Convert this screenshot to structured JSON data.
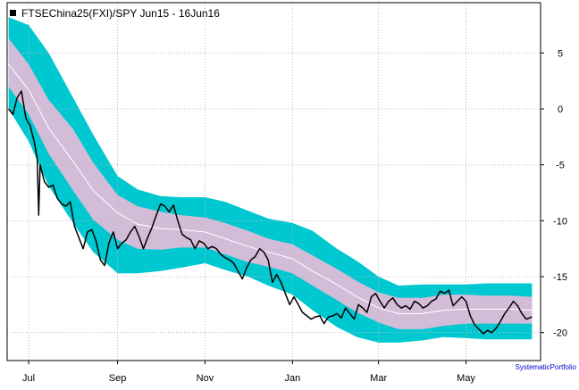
{
  "chart_data": {
    "type": "line",
    "title": "FTSEChina25(FXI)/SPY Jun15 - 16Jun16",
    "credit": "SystematicPortfolio",
    "x_tick_labels": [
      "Jul",
      "Sep",
      "Nov",
      "Jan",
      "Mar",
      "May"
    ],
    "x_tick_dates": [
      "2015-07-01",
      "2015-09-01",
      "2015-11-01",
      "2016-01-01",
      "2016-03-01",
      "2016-05-01"
    ],
    "x_range": [
      "2015-06-16",
      "2016-06-22"
    ],
    "y_tick_labels": [
      "5",
      "0",
      "-5",
      "-10",
      "-15",
      "-20"
    ],
    "y_ticks": [
      5,
      0,
      -5,
      -10,
      -15,
      -20
    ],
    "ylim": [
      -22.5,
      9.5
    ],
    "grid": true,
    "y_axis_side": "right",
    "colors": {
      "series": "#000000",
      "inner_band": "#d3bcd8",
      "outer_band": "#00c8d0",
      "mid_line": "#ffffff",
      "grid": "#bbbbbb",
      "legend_marker": "#000000",
      "credit": "#0000cc"
    },
    "bands": {
      "dates": [
        "2015-06-17",
        "2015-07-01",
        "2015-07-15",
        "2015-08-01",
        "2015-08-15",
        "2015-09-01",
        "2015-09-15",
        "2015-10-01",
        "2015-10-15",
        "2015-11-01",
        "2015-11-15",
        "2015-12-01",
        "2015-12-15",
        "2016-01-01",
        "2016-01-15",
        "2016-02-01",
        "2016-02-15",
        "2016-03-01",
        "2016-03-15",
        "2016-04-01",
        "2016-04-15",
        "2016-05-01",
        "2016-05-15",
        "2016-06-01",
        "2016-06-16"
      ],
      "mid": [
        4.0,
        1.7,
        -1.7,
        -4.7,
        -7.3,
        -9.3,
        -10.3,
        -10.7,
        -10.8,
        -11.0,
        -11.6,
        -12.3,
        -12.8,
        -13.4,
        -14.5,
        -15.7,
        -16.8,
        -17.8,
        -18.3,
        -18.3,
        -18.0,
        -17.9,
        -17.9,
        -17.9,
        -18.0
      ],
      "inner_upper": [
        6.3,
        4.0,
        0.8,
        -1.8,
        -4.8,
        -7.7,
        -8.7,
        -9.2,
        -9.5,
        -9.7,
        -10.2,
        -10.9,
        -11.6,
        -12.1,
        -13.1,
        -14.3,
        -15.4,
        -16.4,
        -16.9,
        -16.9,
        -16.6,
        -16.6,
        -16.7,
        -16.7,
        -16.8
      ],
      "inner_lower": [
        2.0,
        -0.5,
        -4.0,
        -7.3,
        -9.9,
        -11.7,
        -12.5,
        -12.6,
        -12.4,
        -12.4,
        -13.0,
        -13.7,
        -14.1,
        -14.7,
        -15.8,
        -17.1,
        -18.2,
        -19.1,
        -19.7,
        -19.7,
        -19.4,
        -19.2,
        -19.2,
        -19.2,
        -19.2
      ],
      "outer_upper": [
        8.2,
        7.5,
        5.0,
        1.0,
        -2.3,
        -6.0,
        -7.2,
        -7.8,
        -7.9,
        -7.9,
        -8.3,
        -9.1,
        -9.8,
        -10.2,
        -10.9,
        -12.5,
        -13.6,
        -15.0,
        -15.8,
        -15.7,
        -15.7,
        -15.7,
        -15.6,
        -15.6,
        -15.6
      ],
      "outer_lower": [
        0.0,
        -2.9,
        -6.9,
        -10.2,
        -12.8,
        -14.7,
        -14.7,
        -14.5,
        -14.2,
        -13.8,
        -14.4,
        -15.0,
        -15.8,
        -16.6,
        -18.0,
        -19.5,
        -20.4,
        -20.9,
        -20.9,
        -20.7,
        -20.4,
        -20.5,
        -20.6,
        -20.6,
        -20.6
      ]
    },
    "series": [
      {
        "dates": [
          "2015-06-17",
          "2015-06-20",
          "2015-06-23",
          "2015-06-26",
          "2015-06-29",
          "2015-07-02",
          "2015-07-05",
          "2015-07-07",
          "2015-07-08",
          "2015-07-09",
          "2015-07-12",
          "2015-07-15",
          "2015-07-18",
          "2015-07-21",
          "2015-07-24",
          "2015-07-27",
          "2015-07-30",
          "2015-08-02",
          "2015-08-05",
          "2015-08-08",
          "2015-08-11",
          "2015-08-14",
          "2015-08-17",
          "2015-08-20",
          "2015-08-23",
          "2015-08-26",
          "2015-08-29",
          "2015-09-01",
          "2015-09-04",
          "2015-09-07",
          "2015-09-10",
          "2015-09-13",
          "2015-09-16",
          "2015-09-19",
          "2015-09-22",
          "2015-09-25",
          "2015-09-28",
          "2015-10-01",
          "2015-10-04",
          "2015-10-07",
          "2015-10-10",
          "2015-10-13",
          "2015-10-16",
          "2015-10-19",
          "2015-10-22",
          "2015-10-25",
          "2015-10-28",
          "2015-10-31",
          "2015-11-03",
          "2015-11-06",
          "2015-11-09",
          "2015-11-12",
          "2015-11-15",
          "2015-11-18",
          "2015-11-21",
          "2015-11-24",
          "2015-11-27",
          "2015-11-30",
          "2015-12-03",
          "2015-12-06",
          "2015-12-09",
          "2015-12-12",
          "2015-12-15",
          "2015-12-18",
          "2015-12-21",
          "2015-12-24",
          "2015-12-27",
          "2015-12-30",
          "2016-01-02",
          "2016-01-05",
          "2016-01-08",
          "2016-01-11",
          "2016-01-14",
          "2016-01-17",
          "2016-01-20",
          "2016-01-23",
          "2016-01-26",
          "2016-01-29",
          "2016-02-01",
          "2016-02-04",
          "2016-02-07",
          "2016-02-10",
          "2016-02-13",
          "2016-02-16",
          "2016-02-19",
          "2016-02-22",
          "2016-02-25",
          "2016-02-28",
          "2016-03-02",
          "2016-03-05",
          "2016-03-08",
          "2016-03-11",
          "2016-03-14",
          "2016-03-17",
          "2016-03-20",
          "2016-03-23",
          "2016-03-26",
          "2016-03-29",
          "2016-04-01",
          "2016-04-04",
          "2016-04-07",
          "2016-04-10",
          "2016-04-13",
          "2016-04-16",
          "2016-04-19",
          "2016-04-22",
          "2016-04-25",
          "2016-04-28",
          "2016-05-01",
          "2016-05-04",
          "2016-05-07",
          "2016-05-10",
          "2016-05-13",
          "2016-05-16",
          "2016-05-19",
          "2016-05-22",
          "2016-05-25",
          "2016-05-28",
          "2016-05-31",
          "2016-06-03",
          "2016-06-06",
          "2016-06-09",
          "2016-06-12",
          "2016-06-16"
        ],
        "values": [
          0.0,
          -0.5,
          1.0,
          1.6,
          -0.8,
          -1.5,
          -3.0,
          -4.5,
          -9.5,
          -5.0,
          -6.5,
          -7.0,
          -6.8,
          -8.0,
          -8.5,
          -8.7,
          -8.3,
          -10.5,
          -11.5,
          -12.5,
          -11.0,
          -10.8,
          -11.8,
          -13.5,
          -14.0,
          -12.0,
          -11.0,
          -12.5,
          -12.0,
          -11.7,
          -11.0,
          -10.5,
          -11.4,
          -12.5,
          -11.5,
          -10.6,
          -9.5,
          -8.5,
          -8.7,
          -9.2,
          -8.6,
          -10.0,
          -11.2,
          -11.5,
          -11.7,
          -12.5,
          -11.8,
          -12.0,
          -12.5,
          -12.3,
          -12.5,
          -13.0,
          -13.3,
          -13.5,
          -13.8,
          -14.5,
          -15.2,
          -14.2,
          -13.5,
          -13.2,
          -12.5,
          -12.8,
          -13.5,
          -15.5,
          -14.8,
          -15.5,
          -16.5,
          -17.5,
          -16.8,
          -17.5,
          -18.2,
          -18.5,
          -18.8,
          -18.6,
          -18.5,
          -19.2,
          -18.6,
          -18.5,
          -18.3,
          -18.7,
          -17.8,
          -18.3,
          -18.8,
          -17.5,
          -17.8,
          -18.2,
          -16.8,
          -16.5,
          -17.2,
          -17.8,
          -17.2,
          -16.9,
          -17.5,
          -17.8,
          -17.6,
          -17.9,
          -17.2,
          -17.4,
          -17.8,
          -17.6,
          -17.2,
          -17.0,
          -16.3,
          -16.5,
          -16.2,
          -17.6,
          -17.2,
          -16.8,
          -17.2,
          -18.5,
          -19.3,
          -19.7,
          -20.1,
          -19.8,
          -20.0,
          -19.6,
          -19.0,
          -18.3,
          -17.8,
          -17.2,
          -17.6,
          -18.3,
          -18.8,
          -18.6
        ]
      }
    ]
  }
}
